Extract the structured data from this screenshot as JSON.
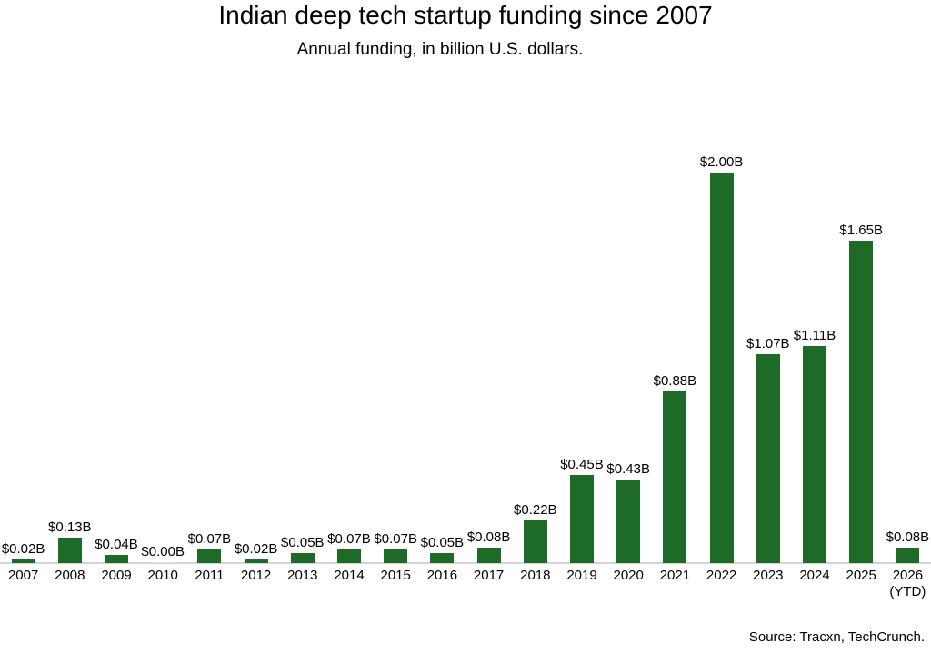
{
  "chart_data": {
    "type": "bar",
    "title": "Indian deep tech startup funding since 2007",
    "subtitle": "Annual funding, in billion U.S. dollars.",
    "source": "Source: Tracxn, TechCrunch.",
    "categories": [
      "2007",
      "2008",
      "2009",
      "2010",
      "2011",
      "2012",
      "2013",
      "2014",
      "2015",
      "2016",
      "2017",
      "2018",
      "2019",
      "2020",
      "2021",
      "2022",
      "2023",
      "2024",
      "2025",
      "2026 (YTD)"
    ],
    "tick_labels": [
      [
        "2007"
      ],
      [
        "2008"
      ],
      [
        "2009"
      ],
      [
        "2010"
      ],
      [
        "2011"
      ],
      [
        "2012"
      ],
      [
        "2013"
      ],
      [
        "2014"
      ],
      [
        "2015"
      ],
      [
        "2016"
      ],
      [
        "2017"
      ],
      [
        "2018"
      ],
      [
        "2019"
      ],
      [
        "2020"
      ],
      [
        "2021"
      ],
      [
        "2022"
      ],
      [
        "2023"
      ],
      [
        "2024"
      ],
      [
        "2025"
      ],
      [
        "2026",
        "(YTD)"
      ]
    ],
    "values": [
      0.02,
      0.13,
      0.04,
      0.0,
      0.07,
      0.02,
      0.05,
      0.07,
      0.07,
      0.05,
      0.08,
      0.22,
      0.45,
      0.43,
      0.88,
      2.0,
      1.07,
      1.11,
      1.65,
      0.08
    ],
    "data_labels": [
      "$0.02B",
      "$0.13B",
      "$0.04B",
      "$0.00B",
      "$0.07B",
      "$0.02B",
      "$0.05B",
      "$0.07B",
      "$0.07B",
      "$0.05B",
      "$0.08B",
      "$0.22B",
      "$0.45B",
      "$0.43B",
      "$0.88B",
      "$2.00B",
      "$1.07B",
      "$1.11B",
      "$1.65B",
      "$0.08B"
    ],
    "xlabel": "",
    "ylabel": "",
    "ylim": [
      0,
      2.0
    ],
    "grid": false,
    "legend": false,
    "colors": {
      "bar": "#1e6b28",
      "zero_bar": "#dce3dc",
      "axis_line": "#d4d4d4",
      "text": "#000000",
      "background": "#ffffff"
    }
  }
}
